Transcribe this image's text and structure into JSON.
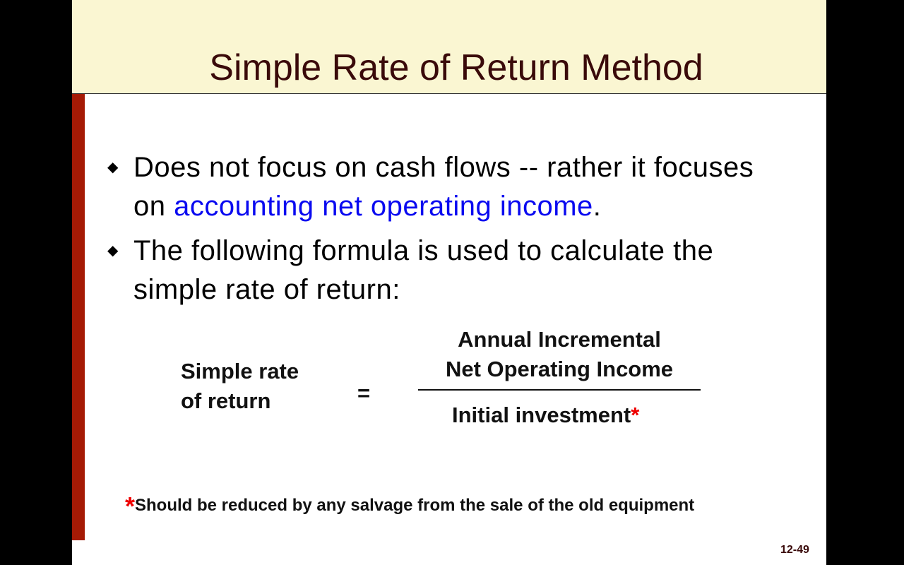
{
  "slide": {
    "title": "Simple Rate of Return Method",
    "bullets": [
      {
        "pre": "Does not focus on cash flows -- rather it focuses on ",
        "highlight": "accounting net operating income",
        "post": "."
      },
      {
        "pre": "The following formula is used to calculate the simple rate of return:"
      }
    ],
    "formula": {
      "lhs_line1": "Simple rate",
      "lhs_line2": "of return",
      "equals": "=",
      "numerator_line1": "Annual Incremental",
      "numerator_line2": "Net Operating Income",
      "denominator": "Initial investment",
      "marker": "*"
    },
    "footnote": {
      "marker": "*",
      "text": "Should be reduced by any salvage from the sale of the old equipment"
    },
    "page_number": "12-49",
    "colors": {
      "header_bg": "#faf6d2",
      "accent_bar": "#a51a05",
      "highlight": "#0a0af0",
      "title": "#3a0a0a"
    }
  }
}
